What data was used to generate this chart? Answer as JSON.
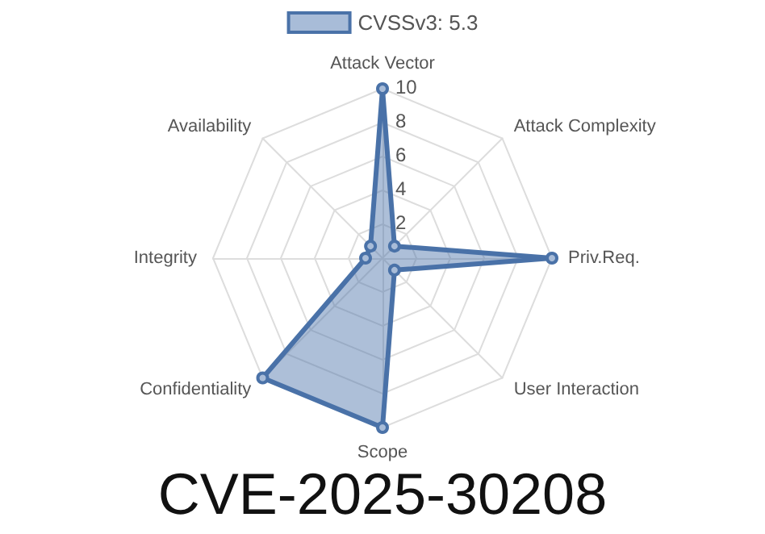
{
  "chart_data": {
    "type": "radar",
    "title": "CVE-2025-30208",
    "categories": [
      "Attack Vector",
      "Attack Complexity",
      "Priv.Req.",
      "User Interaction",
      "Scope",
      "Confidentiality",
      "Integrity",
      "Availability"
    ],
    "series": [
      {
        "name": "CVSSv3: 5.3",
        "color": "#4a72a8",
        "values": [
          10,
          1,
          10,
          1,
          10,
          10,
          1,
          1
        ]
      }
    ],
    "ylim": [
      0,
      10
    ],
    "yticks": [
      2,
      4,
      6,
      8,
      10
    ],
    "legend": "top",
    "marker": "circle",
    "grid": true
  }
}
